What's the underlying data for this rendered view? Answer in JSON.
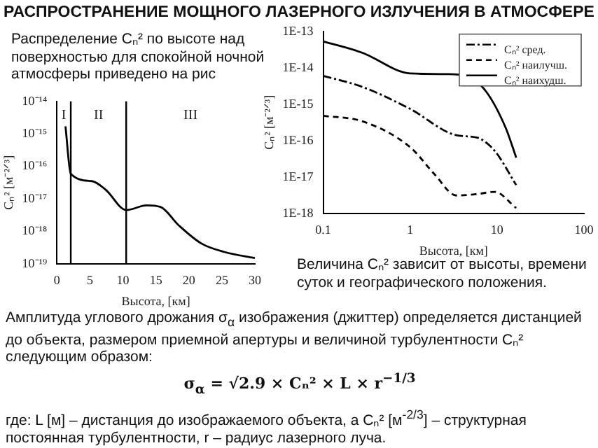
{
  "chart_data": [
    {
      "type": "line",
      "xlabel": "Высота, [км]",
      "ylabel": "Cₙ² [м⁻²ᐟ³]",
      "log": "y",
      "xlim": [
        0,
        30
      ],
      "xticks": [
        0,
        5,
        10,
        15,
        20,
        25,
        30
      ],
      "ylim": [
        1e-19,
        1e-14
      ],
      "yticks": [
        {
          "value": 1e-19,
          "label": "10⁻¹⁹"
        },
        {
          "value": 1e-18,
          "label": "10⁻¹⁸"
        },
        {
          "value": 1e-17,
          "label": "10⁻¹⁷"
        },
        {
          "value": 1e-16,
          "label": "10⁻¹⁶"
        },
        {
          "value": 1e-15,
          "label": "10⁻¹⁵"
        },
        {
          "value": 1e-14,
          "label": "10⁻¹⁴"
        }
      ],
      "series": [
        {
          "color": "#000000",
          "x": [
            1.3,
            2.1,
            5.3,
            7.4,
            10.5,
            13.6,
            15.7,
            18.5,
            21.9,
            25.4,
            30
          ],
          "values": [
            1.7e-15,
            5.9e-17,
            3.5e-17,
            1.9e-17,
            4.5e-18,
            6.3e-18,
            5.6e-18,
            1.5e-18,
            4.2e-19,
            2.3e-19,
            1.5e-19
          ]
        }
      ],
      "ref_lines": [
        {
          "axis": "x",
          "value": 2.1,
          "color": "#000000"
        },
        {
          "axis": "x",
          "value": 10.5,
          "color": "#000000"
        }
      ],
      "annotations": [
        "I",
        "II",
        "III"
      ]
    },
    {
      "type": "line",
      "xlabel": "Высота, [км]",
      "ylabel": "Cₙ² [м⁻²ᐟ³]",
      "log": "xy",
      "legend": "top right",
      "xlim": [
        0.1,
        100
      ],
      "xticks": [
        0.1,
        1,
        10,
        100
      ],
      "ylim": [
        1e-18,
        1e-13
      ],
      "yticks": [
        {
          "value": 1e-18,
          "label": "1E-18"
        },
        {
          "value": 1e-17,
          "label": "1E-17"
        },
        {
          "value": 1e-16,
          "label": "1E-16"
        },
        {
          "value": 1e-15,
          "label": "1E-15"
        },
        {
          "value": 1e-14,
          "label": "1E-14"
        },
        {
          "value": 1e-13,
          "label": "1E-13"
        }
      ],
      "series": [
        {
          "name": "Cₙ² сред.",
          "color": "#000000",
          "line_style": "dotted",
          "x": [
            0.1,
            0.28,
            1,
            3.4,
            5.9,
            9.4,
            16.6
          ],
          "values": [
            6e-15,
            3e-15,
            7.4e-16,
            1.4e-16,
            1.2e-16,
            5.2e-17,
            6e-18
          ]
        },
        {
          "name": "Cₙ² наилучш.",
          "color": "#000000",
          "line_style": "dashed",
          "x": [
            0.1,
            0.28,
            1,
            1.9,
            3.4,
            5.9,
            9.4,
            16.6
          ],
          "values": [
            4.8e-16,
            3.4e-16,
            6.6e-17,
            1.2e-17,
            3.1e-18,
            3.4e-18,
            3.9e-18,
            1.4e-18
          ]
        },
        {
          "name": "Cₙ² наихудш.",
          "color": "#000000",
          "line_style": "solid",
          "x": [
            0.1,
            0.28,
            1,
            2.67,
            4.5,
            7.5,
            12.6,
            16.6
          ],
          "values": [
            5.3e-14,
            2.6e-14,
            7e-15,
            6.7e-15,
            6e-15,
            2.2e-15,
            2.2e-16,
            3.4e-17
          ]
        }
      ]
    },
    {
      "type": "other",
      "title": "РАСПРОСТРАНЕНИЕ МОЩНОГО ЛАЗЕРНОГО ИЗЛУЧЕНИЯ В АТМОСФЕРЕ",
      "annotations": [
        "Распределение Cₙ² по высоте над поверхностью для спокойной ночной атмосферы приведено на рис",
        "Величина Cₙ² зависит от высоты, времени суток и географического положения.",
        "Амплитуда углового дрожания σ$_{α}$ изображения (джиттер) определяется дистанцией до объекта, размером приемной апертуры и величиной турбулентности Cₙ² следующим образом:",
        "σ$_{α}$ = √2.9 × Cₙ² × L × r$^{−1/3}$",
        "где: L [м] – дистанция до изображаемого объекта, а Cₙ² [м$^{-2/3}$] – структурная постоянная турбулентности, r – радиус лазерного луча."
      ]
    }
  ]
}
